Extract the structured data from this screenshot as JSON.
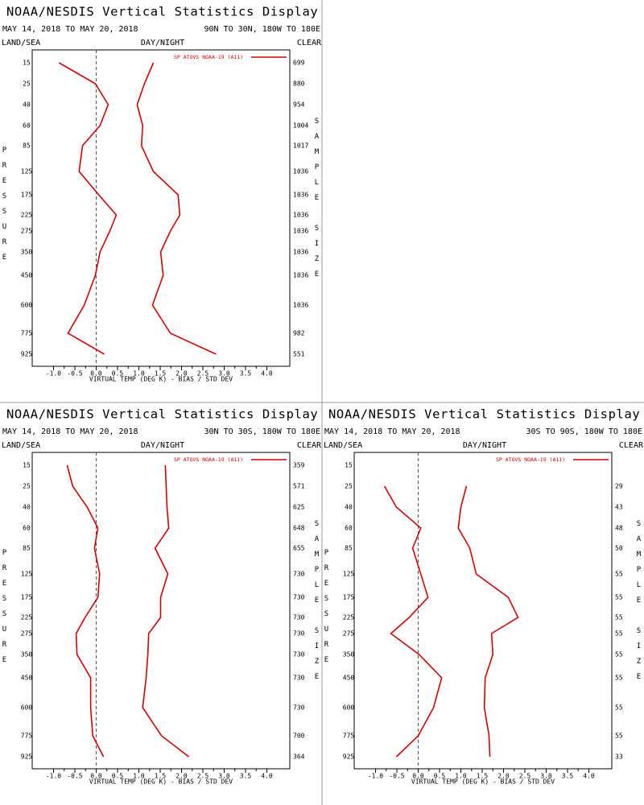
{
  "chart_data": [
    {
      "type": "line",
      "title": "NOAA/NESDIS Vertical Statistics Display",
      "date_range": "MAY 14, 2018 TO MAY 20, 2018",
      "region": "90N TO 30N, 180W TO 180E",
      "land_sea": "LAND/SEA",
      "day_night": "DAY/NIGHT",
      "clear": "CLEAR",
      "legend": "SP ATOVS NOAA-19 (A11)",
      "y_label": "PRESSURE",
      "y2_label": "SAMPLE SIZE",
      "x_label": "VIRTUAL TEMP (DEG K) - BIAS / STD DEV",
      "categories": [
        15,
        25,
        40,
        60,
        85,
        125,
        175,
        225,
        275,
        350,
        450,
        600,
        775,
        925
      ],
      "xlim": [
        -1.5,
        4.5
      ],
      "xticks": [
        {
          "value": -1,
          "label": "-1.0"
        },
        -0.5,
        {
          "value": 0,
          "label": "0.0"
        },
        0.5,
        {
          "value": 1,
          "label": "1.0"
        },
        1.5,
        {
          "value": 2,
          "label": "2.0"
        },
        2.5,
        {
          "value": 3,
          "label": "3.0"
        },
        3.5,
        {
          "value": 4,
          "label": "4.0"
        }
      ],
      "series": [
        {
          "color": "#d40000",
          "values": [
            -0.87,
            -0.02,
            0.28,
            0.09,
            -0.32,
            -0.4,
            0.06,
            0.47,
            0.32,
            0.09,
            -0.02,
            -0.28,
            -0.66,
            0.19
          ]
        },
        {
          "color": "#d40000",
          "values": [
            1.34,
            1.13,
            0.96,
            1.09,
            1.06,
            1.34,
            1.92,
            1.96,
            1.74,
            1.51,
            1.57,
            1.32,
            1.74,
            2.81
          ]
        }
      ],
      "sample_size": [
        699,
        880,
        954,
        1004,
        1017,
        1036,
        1036,
        1036,
        1036,
        1036,
        1036,
        1036,
        982,
        551
      ]
    },
    {
      "type": "line",
      "title": "NOAA/NESDIS Vertical Statistics Display",
      "date_range": "MAY 14, 2018 TO MAY 20, 2018",
      "region": "30N TO 30S, 180W TO 180E",
      "land_sea": "LAND/SEA",
      "day_night": "DAY/NIGHT",
      "clear": "CLEAR",
      "legend": "SP ATOVS NOAA-19 (A11)",
      "y_label": "PRESSURE",
      "y2_label": "SAMPLE SIZE",
      "x_label": "VIRTUAL TEMP (DEG K) - BIAS / STD DEV",
      "categories": [
        15,
        25,
        40,
        60,
        85,
        125,
        175,
        225,
        275,
        350,
        450,
        600,
        775,
        925
      ],
      "xlim": [
        -1.5,
        4.5
      ],
      "xticks": [
        {
          "value": -1,
          "label": "-1.0"
        },
        -0.5,
        {
          "value": 0,
          "label": "0.0"
        },
        0.5,
        {
          "value": 1,
          "label": "1.0"
        },
        1.5,
        {
          "value": 2,
          "label": "2.0"
        },
        2.5,
        {
          "value": 3,
          "label": "3.0"
        },
        3.5,
        {
          "value": 4,
          "label": "4.0"
        }
      ],
      "series": [
        {
          "color": "#d40000",
          "values": [
            -0.68,
            -0.55,
            -0.21,
            0.04,
            -0.04,
            0.08,
            0.04,
            -0.26,
            -0.47,
            -0.45,
            -0.13,
            -0.13,
            -0.08,
            0.17
          ]
        },
        {
          "color": "#d40000",
          "values": [
            1.62,
            1.64,
            1.66,
            1.7,
            1.38,
            1.68,
            1.51,
            1.51,
            1.23,
            1.21,
            1.17,
            1.09,
            1.53,
            2.17
          ]
        }
      ],
      "sample_size": [
        359,
        571,
        625,
        648,
        655,
        730,
        730,
        730,
        730,
        730,
        730,
        730,
        700,
        364
      ]
    },
    {
      "type": "line",
      "title": "NOAA/NESDIS Vertical Statistics Display",
      "date_range": "MAY 14, 2018 TO MAY 20, 2018",
      "region": "30S TO 90S, 180W TO 180E",
      "land_sea": "LAND/SEA",
      "day_night": "DAY/NIGHT",
      "clear": "CLEAR",
      "legend": "SP ATOVS NOAA-19 (A11)",
      "y_label": "PRESSURE",
      "y2_label": "SAMPLE SIZE",
      "x_label": "VIRTUAL TEMP (DEG K) - BIAS / STD DEV",
      "categories": [
        15,
        25,
        40,
        60,
        85,
        125,
        175,
        225,
        275,
        350,
        450,
        600,
        775,
        925
      ],
      "xlim": [
        -1.5,
        4.5
      ],
      "xticks": [
        {
          "value": -1,
          "label": "-1.0"
        },
        -0.5,
        {
          "value": 0,
          "label": "0.0"
        },
        0.5,
        {
          "value": 1,
          "label": "1.0"
        },
        1.5,
        {
          "value": 2,
          "label": "2.0"
        },
        2.5,
        {
          "value": 3,
          "label": "3.0"
        },
        3.5,
        {
          "value": 4,
          "label": "4.0"
        }
      ],
      "series": [
        {
          "color": "#d40000",
          "values": [
            null,
            -0.79,
            -0.51,
            0.06,
            -0.13,
            0.06,
            0.23,
            -0.21,
            -0.64,
            0.02,
            0.55,
            0.36,
            0.0,
            -0.51
          ]
        },
        {
          "color": "#d40000",
          "values": [
            null,
            1.13,
            1.0,
            0.94,
            1.21,
            1.36,
            2.11,
            2.34,
            1.72,
            1.75,
            1.57,
            1.55,
            1.66,
            1.68
          ]
        }
      ],
      "sample_size": [
        null,
        29,
        43,
        48,
        50,
        55,
        55,
        55,
        55,
        55,
        55,
        55,
        55,
        33
      ]
    }
  ]
}
